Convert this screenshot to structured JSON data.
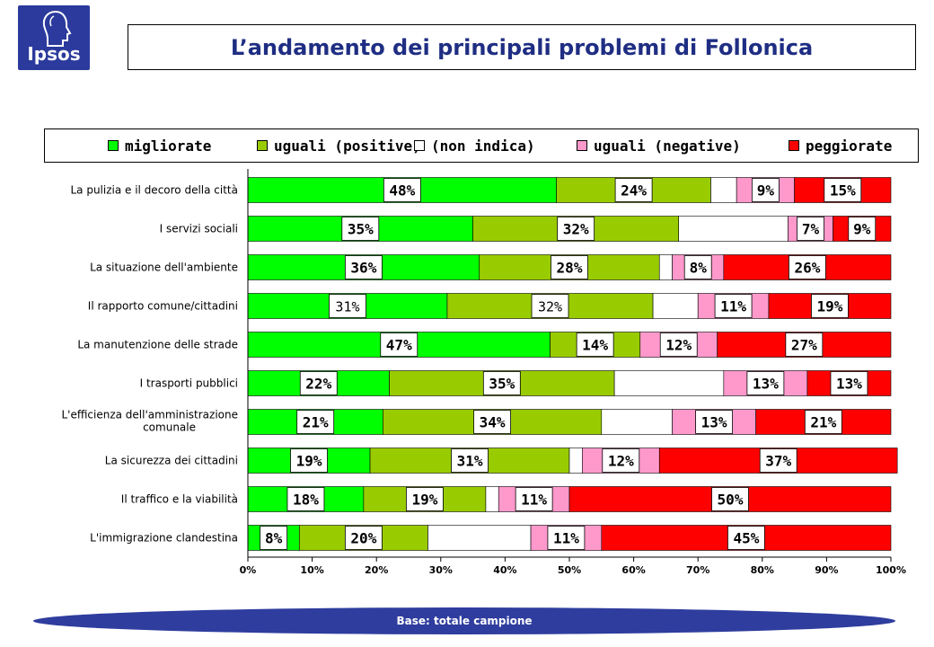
{
  "logo": {
    "text": "Ipsos"
  },
  "header": {
    "title": "L’andamento dei principali problemi di Follonica"
  },
  "footer": {
    "text": "Base: totale campione"
  },
  "chart_data": {
    "type": "bar",
    "orientation": "horizontal",
    "stacked": "percent",
    "title": "",
    "xlabel": "",
    "ylabel": "",
    "xlim": [
      0,
      100
    ],
    "x_ticks": [
      "0%",
      "10%",
      "20%",
      "30%",
      "40%",
      "50%",
      "60%",
      "70%",
      "80%",
      "90%",
      "100%"
    ],
    "legend_position": "top",
    "categories": [
      "La pulizia e il decoro della città",
      "I servizi sociali",
      "La situazione dell'ambiente",
      "Il rapporto comune/cittadini",
      "La manutenzione delle strade",
      "I trasporti pubblici",
      "L'efficienza dell'amministrazione comunale",
      "La sicurezza dei cittadini",
      "Il traffico e la viabilità",
      "L'immigrazione clandestina"
    ],
    "series": [
      {
        "name": "migliorate",
        "color": "#00ff00",
        "values": [
          48,
          35,
          36,
          31,
          47,
          22,
          21,
          19,
          18,
          8
        ]
      },
      {
        "name": "uguali (positive)",
        "color": "#99cc00",
        "values": [
          24,
          32,
          28,
          32,
          14,
          35,
          34,
          31,
          19,
          20
        ]
      },
      {
        "name": "(non indica)",
        "color": "#ffffff",
        "values": [
          4,
          17,
          2,
          7,
          0,
          17,
          11,
          2,
          2,
          16
        ]
      },
      {
        "name": "uguali (negative)",
        "color": "#ff99cc",
        "values": [
          9,
          7,
          8,
          11,
          12,
          13,
          13,
          12,
          11,
          11
        ]
      },
      {
        "name": "peggiorate",
        "color": "#ff0000",
        "values": [
          15,
          9,
          26,
          19,
          27,
          13,
          21,
          37,
          50,
          45
        ]
      }
    ],
    "data_labels": [
      [
        "48%",
        "24%",
        "",
        "9%",
        "15%"
      ],
      [
        "35%",
        "32%",
        "",
        "7%",
        "9%"
      ],
      [
        "36%",
        "28%",
        "",
        "8%",
        "26%"
      ],
      [
        "31%",
        "32%",
        "",
        "11%",
        "19%"
      ],
      [
        "47%",
        "14%",
        "",
        "12%",
        "27%"
      ],
      [
        "22%",
        "35%",
        "",
        "13%",
        "13%"
      ],
      [
        "21%",
        "34%",
        "",
        "13%",
        "21%"
      ],
      [
        "19%",
        "31%",
        "",
        "12%",
        "37%"
      ],
      [
        "18%",
        "19%",
        "",
        "11%",
        "50%"
      ],
      [
        "8%",
        "20%",
        "",
        "11%",
        "45%"
      ]
    ]
  }
}
